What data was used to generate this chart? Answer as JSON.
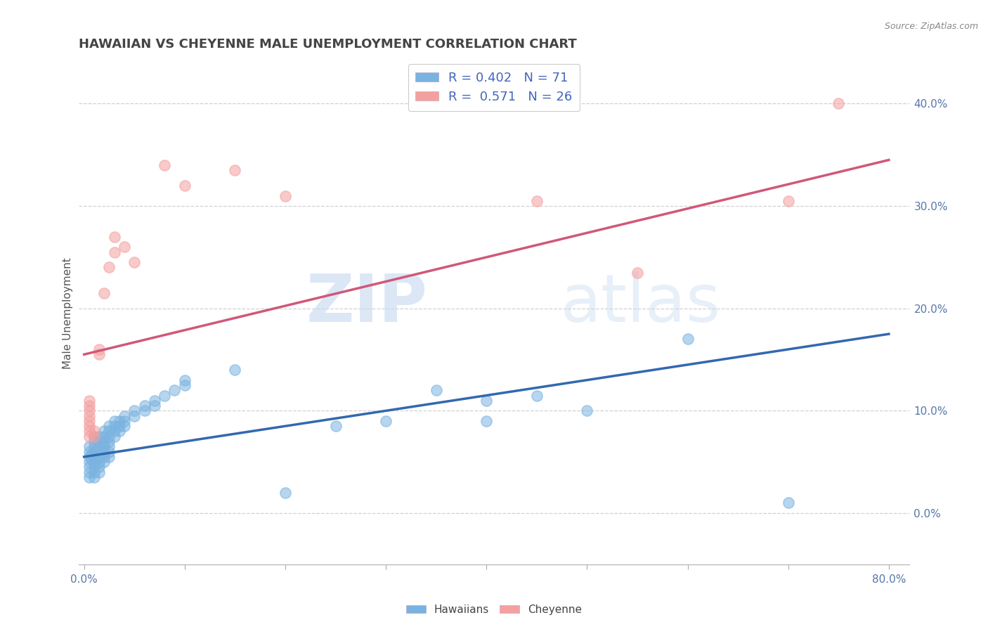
{
  "title": "HAWAIIAN VS CHEYENNE MALE UNEMPLOYMENT CORRELATION CHART",
  "source_text": "Source: ZipAtlas.com",
  "ylabel": "Male Unemployment",
  "xlim": [
    -0.005,
    0.82
  ],
  "ylim": [
    -0.05,
    0.44
  ],
  "blue_color": "#7ab3e0",
  "pink_color": "#f4a0a0",
  "blue_line_color": "#3368b0",
  "pink_line_color": "#d05878",
  "legend_R_blue": "0.402",
  "legend_N_blue": "71",
  "legend_R_pink": "0.571",
  "legend_N_pink": "26",
  "blue_scatter": [
    [
      0.005,
      0.06
    ],
    [
      0.005,
      0.055
    ],
    [
      0.005,
      0.05
    ],
    [
      0.005,
      0.045
    ],
    [
      0.005,
      0.04
    ],
    [
      0.005,
      0.035
    ],
    [
      0.005,
      0.065
    ],
    [
      0.007,
      0.058
    ],
    [
      0.007,
      0.052
    ],
    [
      0.01,
      0.07
    ],
    [
      0.01,
      0.065
    ],
    [
      0.01,
      0.06
    ],
    [
      0.01,
      0.055
    ],
    [
      0.01,
      0.05
    ],
    [
      0.01,
      0.045
    ],
    [
      0.01,
      0.04
    ],
    [
      0.01,
      0.075
    ],
    [
      0.01,
      0.035
    ],
    [
      0.015,
      0.075
    ],
    [
      0.015,
      0.07
    ],
    [
      0.015,
      0.065
    ],
    [
      0.015,
      0.06
    ],
    [
      0.015,
      0.055
    ],
    [
      0.015,
      0.05
    ],
    [
      0.015,
      0.045
    ],
    [
      0.015,
      0.04
    ],
    [
      0.02,
      0.08
    ],
    [
      0.02,
      0.075
    ],
    [
      0.02,
      0.07
    ],
    [
      0.02,
      0.065
    ],
    [
      0.02,
      0.06
    ],
    [
      0.02,
      0.055
    ],
    [
      0.02,
      0.05
    ],
    [
      0.025,
      0.085
    ],
    [
      0.025,
      0.08
    ],
    [
      0.025,
      0.075
    ],
    [
      0.025,
      0.07
    ],
    [
      0.025,
      0.065
    ],
    [
      0.025,
      0.06
    ],
    [
      0.025,
      0.055
    ],
    [
      0.03,
      0.09
    ],
    [
      0.03,
      0.085
    ],
    [
      0.03,
      0.08
    ],
    [
      0.03,
      0.075
    ],
    [
      0.035,
      0.09
    ],
    [
      0.035,
      0.085
    ],
    [
      0.035,
      0.08
    ],
    [
      0.04,
      0.095
    ],
    [
      0.04,
      0.09
    ],
    [
      0.04,
      0.085
    ],
    [
      0.05,
      0.1
    ],
    [
      0.05,
      0.095
    ],
    [
      0.06,
      0.105
    ],
    [
      0.06,
      0.1
    ],
    [
      0.07,
      0.11
    ],
    [
      0.07,
      0.105
    ],
    [
      0.08,
      0.115
    ],
    [
      0.09,
      0.12
    ],
    [
      0.1,
      0.13
    ],
    [
      0.1,
      0.125
    ],
    [
      0.15,
      0.14
    ],
    [
      0.2,
      0.02
    ],
    [
      0.25,
      0.085
    ],
    [
      0.3,
      0.09
    ],
    [
      0.35,
      0.12
    ],
    [
      0.4,
      0.11
    ],
    [
      0.4,
      0.09
    ],
    [
      0.45,
      0.115
    ],
    [
      0.5,
      0.1
    ],
    [
      0.6,
      0.17
    ],
    [
      0.7,
      0.01
    ]
  ],
  "pink_scatter": [
    [
      0.005,
      0.075
    ],
    [
      0.005,
      0.08
    ],
    [
      0.005,
      0.085
    ],
    [
      0.005,
      0.09
    ],
    [
      0.005,
      0.095
    ],
    [
      0.005,
      0.1
    ],
    [
      0.005,
      0.105
    ],
    [
      0.005,
      0.11
    ],
    [
      0.01,
      0.075
    ],
    [
      0.01,
      0.08
    ],
    [
      0.015,
      0.155
    ],
    [
      0.015,
      0.16
    ],
    [
      0.02,
      0.215
    ],
    [
      0.025,
      0.24
    ],
    [
      0.03,
      0.255
    ],
    [
      0.03,
      0.27
    ],
    [
      0.04,
      0.26
    ],
    [
      0.05,
      0.245
    ],
    [
      0.08,
      0.34
    ],
    [
      0.1,
      0.32
    ],
    [
      0.15,
      0.335
    ],
    [
      0.2,
      0.31
    ],
    [
      0.45,
      0.305
    ],
    [
      0.55,
      0.235
    ],
    [
      0.7,
      0.305
    ],
    [
      0.75,
      0.4
    ]
  ],
  "blue_line": [
    [
      0.0,
      0.055
    ],
    [
      0.8,
      0.175
    ]
  ],
  "pink_line": [
    [
      0.0,
      0.155
    ],
    [
      0.8,
      0.345
    ]
  ],
  "watermark_zip": "ZIP",
  "watermark_atlas": "atlas",
  "ytick_values": [
    0.0,
    0.1,
    0.2,
    0.3,
    0.4
  ],
  "ytick_labels_right": [
    "0.0%",
    "10.0%",
    "20.0%",
    "30.0%",
    "40.0%"
  ],
  "xtick_values": [
    0.0,
    0.1,
    0.2,
    0.3,
    0.4,
    0.5,
    0.6,
    0.7,
    0.8
  ],
  "xtick_label_ends": {
    "0.0": "0.0%",
    "0.8": "80.0%"
  },
  "grid_color": "#cccccc",
  "title_color": "#444444",
  "tick_color": "#5577aa",
  "ylabel_color": "#555555",
  "legend_text_color": "#4466bb",
  "source_color": "#888888"
}
